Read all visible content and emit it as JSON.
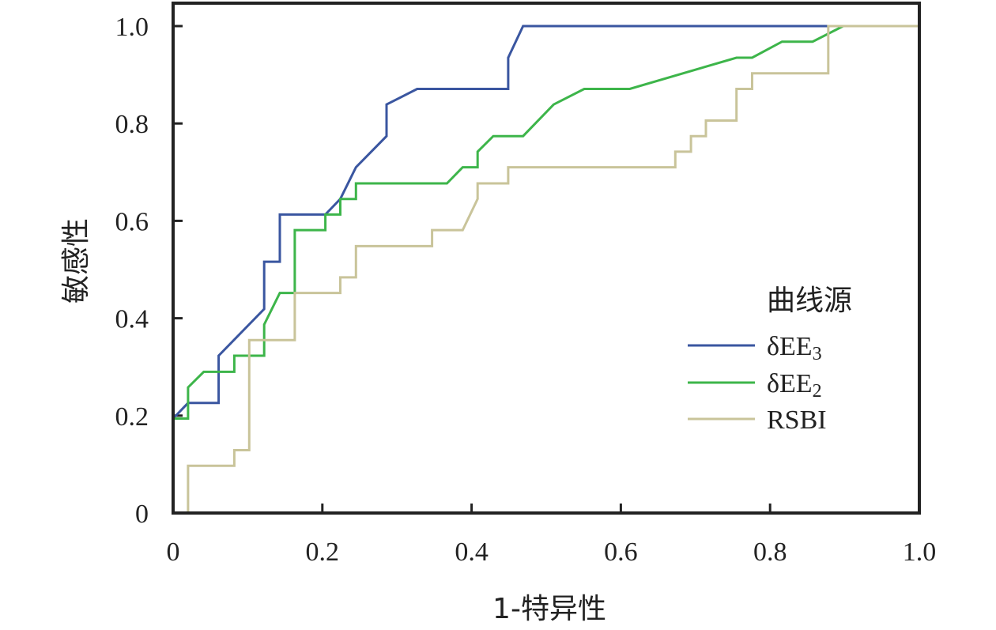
{
  "chart_data": {
    "type": "line",
    "xlabel": "1-特异性",
    "ylabel": "敏感性",
    "xlim": [
      0,
      1
    ],
    "ylim": [
      0,
      1
    ],
    "x_ticks": [
      "0",
      "0.2",
      "0.4",
      "0.6",
      "0.8",
      "1.0"
    ],
    "y_ticks": [
      "0",
      "0.2",
      "0.4",
      "0.6",
      "0.8",
      "1.0"
    ],
    "grid": false,
    "legend": {
      "title": "曲线源",
      "position": "right"
    },
    "series": [
      {
        "name": "δEE",
        "name_subscript": "3",
        "color": "#3a56a0",
        "points": [
          [
            0,
            0
          ],
          [
            0,
            0.194
          ],
          [
            0.02,
            0.226
          ],
          [
            0.061,
            0.226
          ],
          [
            0.061,
            0.323
          ],
          [
            0.122,
            0.419
          ],
          [
            0.122,
            0.516
          ],
          [
            0.143,
            0.516
          ],
          [
            0.143,
            0.613
          ],
          [
            0.204,
            0.613
          ],
          [
            0.224,
            0.645
          ],
          [
            0.245,
            0.71
          ],
          [
            0.286,
            0.774
          ],
          [
            0.286,
            0.839
          ],
          [
            0.327,
            0.871
          ],
          [
            0.449,
            0.871
          ],
          [
            0.449,
            0.935
          ],
          [
            0.469,
            1.0
          ],
          [
            1.0,
            1.0
          ]
        ]
      },
      {
        "name": "δEE",
        "name_subscript": "2",
        "color": "#3db54a",
        "points": [
          [
            0,
            0
          ],
          [
            0,
            0.194
          ],
          [
            0.02,
            0.194
          ],
          [
            0.02,
            0.258
          ],
          [
            0.041,
            0.29
          ],
          [
            0.082,
            0.29
          ],
          [
            0.082,
            0.323
          ],
          [
            0.122,
            0.323
          ],
          [
            0.122,
            0.387
          ],
          [
            0.143,
            0.452
          ],
          [
            0.163,
            0.452
          ],
          [
            0.163,
            0.581
          ],
          [
            0.204,
            0.581
          ],
          [
            0.204,
            0.613
          ],
          [
            0.224,
            0.613
          ],
          [
            0.224,
            0.645
          ],
          [
            0.245,
            0.645
          ],
          [
            0.245,
            0.677
          ],
          [
            0.367,
            0.677
          ],
          [
            0.388,
            0.71
          ],
          [
            0.408,
            0.71
          ],
          [
            0.408,
            0.742
          ],
          [
            0.429,
            0.774
          ],
          [
            0.469,
            0.774
          ],
          [
            0.51,
            0.839
          ],
          [
            0.551,
            0.871
          ],
          [
            0.612,
            0.871
          ],
          [
            0.755,
            0.935
          ],
          [
            0.776,
            0.935
          ],
          [
            0.816,
            0.968
          ],
          [
            0.857,
            0.968
          ],
          [
            0.898,
            1.0
          ],
          [
            1.0,
            1.0
          ]
        ]
      },
      {
        "name": "RSBI",
        "name_subscript": "",
        "color": "#c9c49a",
        "points": [
          [
            0,
            0
          ],
          [
            0.02,
            0
          ],
          [
            0.02,
            0.097
          ],
          [
            0.082,
            0.097
          ],
          [
            0.082,
            0.129
          ],
          [
            0.102,
            0.129
          ],
          [
            0.102,
            0.355
          ],
          [
            0.163,
            0.355
          ],
          [
            0.163,
            0.452
          ],
          [
            0.224,
            0.452
          ],
          [
            0.224,
            0.484
          ],
          [
            0.245,
            0.484
          ],
          [
            0.245,
            0.548
          ],
          [
            0.347,
            0.548
          ],
          [
            0.347,
            0.581
          ],
          [
            0.388,
            0.581
          ],
          [
            0.408,
            0.645
          ],
          [
            0.408,
            0.677
          ],
          [
            0.449,
            0.677
          ],
          [
            0.449,
            0.71
          ],
          [
            0.673,
            0.71
          ],
          [
            0.673,
            0.742
          ],
          [
            0.694,
            0.742
          ],
          [
            0.694,
            0.774
          ],
          [
            0.714,
            0.774
          ],
          [
            0.714,
            0.806
          ],
          [
            0.755,
            0.806
          ],
          [
            0.755,
            0.871
          ],
          [
            0.776,
            0.871
          ],
          [
            0.776,
            0.903
          ],
          [
            0.878,
            0.903
          ],
          [
            0.878,
            1.0
          ],
          [
            1.0,
            1.0
          ]
        ]
      }
    ]
  }
}
